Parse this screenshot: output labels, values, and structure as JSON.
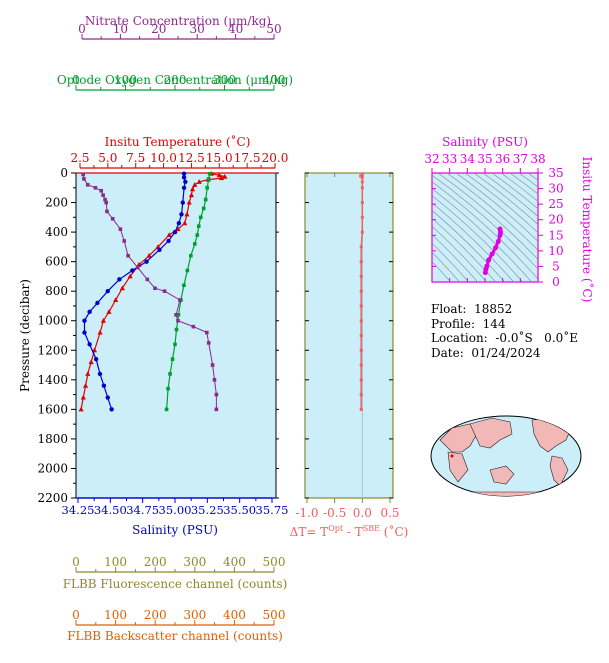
{
  "colors": {
    "nitrate": "#8B2A8B",
    "oxygen": "#00A030",
    "temperature": "#E00000",
    "salinity": "#0000CC",
    "fluorescence": "#8B8B2A",
    "backscatter": "#E06000",
    "delta_t": "#F06060",
    "ts_axis": "#E000E0",
    "panel_bg": "#CCEEF8",
    "land": "#F2B8B8"
  },
  "axes": {
    "nitrate": {
      "label": "Nitrate Concentration (μm/kg)",
      "ticks": [
        "0",
        "10",
        "20",
        "30",
        "40",
        "50"
      ],
      "range": [
        0,
        50
      ]
    },
    "oxygen": {
      "label": "Optode Oxygen Concentration (μm/kg)",
      "ticks": [
        "0",
        "100",
        "200",
        "300",
        "400"
      ],
      "range": [
        0,
        400
      ]
    },
    "temperature": {
      "label": "Insitu Temperature (˚C)",
      "ticks": [
        "2.5",
        "5.0",
        "7.5",
        "10.0",
        "12.5",
        "15.0",
        "17.5",
        "20.0"
      ],
      "range": [
        2.5,
        20.0
      ]
    },
    "salinity": {
      "label": "Salinity (PSU)",
      "ticks": [
        "34.25",
        "34.50",
        "34.75",
        "35.00",
        "35.25",
        "35.50",
        "35.75"
      ],
      "range": [
        34.25,
        35.75
      ]
    },
    "pressure": {
      "label": "Pressure (decibar)",
      "ticks": [
        "0",
        "200",
        "400",
        "600",
        "800",
        "1000",
        "1200",
        "1400",
        "1600",
        "1800",
        "2000",
        "2200"
      ],
      "range": [
        0,
        2200
      ]
    },
    "fluorescence": {
      "label": "FLBB Fluorescence channel (counts)",
      "ticks": [
        "0",
        "100",
        "200",
        "300",
        "400",
        "500"
      ],
      "range": [
        0,
        500
      ]
    },
    "backscatter": {
      "label": "FLBB Backscatter channel (counts)",
      "ticks": [
        "0",
        "100",
        "200",
        "300",
        "400",
        "500"
      ],
      "range": [
        0,
        500
      ]
    },
    "delta_t": {
      "label_main": "ΔT= T",
      "sup1": "Opt",
      "label_mid": " - T",
      "sup2": "SBE",
      "label_end": " (˚C)",
      "ticks": [
        "-1.0",
        "-0.5",
        "0.0",
        "0.5"
      ],
      "range": [
        -1.0,
        0.5
      ]
    },
    "ts_salinity": {
      "label": "Salinity (PSU)",
      "ticks": [
        "32",
        "33",
        "34",
        "35",
        "36",
        "37",
        "38"
      ],
      "range": [
        32,
        38
      ]
    },
    "ts_temperature": {
      "label": "Insitu Temperature (˚C)",
      "ticks": [
        "0",
        "5",
        "10",
        "15",
        "20",
        "25",
        "30",
        "35"
      ],
      "range": [
        0,
        35
      ]
    }
  },
  "info": {
    "float_label": "Float:",
    "float_value": "18852",
    "profile_label": "Profile:",
    "profile_value": "144",
    "location_label": "Location:",
    "location_value": "-0.0˚S   0.0˚E",
    "date_label": "Date:",
    "date_value": "01/24/2024"
  },
  "chart_data": [
    {
      "type": "line",
      "name": "profile",
      "y_axis": "pressure",
      "series": [
        {
          "name": "temperature",
          "x_axis": "temperature",
          "points": [
            [
              14.3,
              5
            ],
            [
              15.0,
              15
            ],
            [
              15.5,
              25
            ],
            [
              15.2,
              35
            ],
            [
              14.0,
              45
            ],
            [
              13.2,
              60
            ],
            [
              12.8,
              80
            ],
            [
              12.6,
              110
            ],
            [
              12.5,
              150
            ],
            [
              12.3,
              200
            ],
            [
              12.1,
              280
            ],
            [
              11.9,
              340
            ],
            [
              11.3,
              380
            ],
            [
              10.5,
              420
            ],
            [
              9.5,
              500
            ],
            [
              8.7,
              560
            ],
            [
              7.8,
              620
            ],
            [
              7.0,
              700
            ],
            [
              6.3,
              780
            ],
            [
              5.7,
              860
            ],
            [
              5.1,
              940
            ],
            [
              4.6,
              1000
            ],
            [
              4.3,
              1080
            ],
            [
              3.8,
              1200
            ],
            [
              3.5,
              1280
            ],
            [
              3.2,
              1360
            ],
            [
              3.0,
              1440
            ],
            [
              2.8,
              1520
            ],
            [
              2.6,
              1600
            ]
          ]
        },
        {
          "name": "salinity",
          "x_axis": "salinity",
          "points": [
            [
              35.07,
              5
            ],
            [
              35.07,
              30
            ],
            [
              35.08,
              60
            ],
            [
              35.07,
              100
            ],
            [
              35.06,
              200
            ],
            [
              35.05,
              280
            ],
            [
              35.03,
              340
            ],
            [
              35.0,
              400
            ],
            [
              34.95,
              460
            ],
            [
              34.88,
              520
            ],
            [
              34.78,
              600
            ],
            [
              34.67,
              660
            ],
            [
              34.57,
              720
            ],
            [
              34.48,
              800
            ],
            [
              34.4,
              880
            ],
            [
              34.34,
              940
            ],
            [
              34.3,
              1000
            ],
            [
              34.3,
              1080
            ],
            [
              34.34,
              1160
            ],
            [
              34.39,
              1260
            ],
            [
              34.42,
              1360
            ],
            [
              34.45,
              1440
            ],
            [
              34.48,
              1520
            ],
            [
              34.51,
              1600
            ]
          ]
        },
        {
          "name": "oxygen",
          "x_axis": "oxygen",
          "points": [
            [
              270,
              5
            ],
            [
              268,
              40
            ],
            [
              265,
              100
            ],
            [
              262,
              180
            ],
            [
              258,
              240
            ],
            [
              252,
              300
            ],
            [
              248,
              360
            ],
            [
              245,
              420
            ],
            [
              240,
              480
            ],
            [
              232,
              560
            ],
            [
              225,
              660
            ],
            [
              218,
              760
            ],
            [
              212,
              860
            ],
            [
              207,
              960
            ],
            [
              203,
              1060
            ],
            [
              200,
              1160
            ],
            [
              195,
              1260
            ],
            [
              190,
              1360
            ],
            [
              186,
              1460
            ],
            [
              183,
              1600
            ]
          ]
        },
        {
          "name": "nitrate",
          "x_axis": "nitrate",
          "points": [
            [
              0.3,
              10
            ],
            [
              0.5,
              40
            ],
            [
              1.5,
              80
            ],
            [
              3.5,
              100
            ],
            [
              5.0,
              120
            ],
            [
              5.5,
              150
            ],
            [
              6.0,
              180
            ],
            [
              6.3,
              200
            ],
            [
              6.5,
              260
            ],
            [
              8.0,
              310
            ],
            [
              10.0,
              380
            ],
            [
              11.0,
              460
            ],
            [
              12.0,
              560
            ],
            [
              14.5,
              640
            ],
            [
              17.0,
              720
            ],
            [
              19.0,
              780
            ],
            [
              21.5,
              800
            ],
            [
              25.5,
              860
            ],
            [
              24.5,
              960
            ],
            [
              25.0,
              1000
            ],
            [
              29.0,
              1040
            ],
            [
              32.5,
              1080
            ],
            [
              33.0,
              1150
            ],
            [
              34.0,
              1300
            ],
            [
              34.5,
              1400
            ],
            [
              35.0,
              1500
            ],
            [
              35.0,
              1600
            ]
          ]
        },
        {
          "name": "delta_t",
          "x_axis": "delta_t",
          "points": [
            [
              0.0,
              10
            ],
            [
              -0.03,
              20
            ],
            [
              0.0,
              30
            ],
            [
              0.0,
              60
            ],
            [
              0.0,
              100
            ],
            [
              0.0,
              200
            ],
            [
              0.0,
              300
            ],
            [
              0.0,
              400
            ],
            [
              -0.02,
              500
            ],
            [
              -0.02,
              600
            ],
            [
              -0.02,
              700
            ],
            [
              -0.02,
              800
            ],
            [
              -0.02,
              900
            ],
            [
              -0.02,
              1000
            ],
            [
              -0.02,
              1100
            ],
            [
              -0.02,
              1200
            ],
            [
              -0.02,
              1300
            ],
            [
              -0.02,
              1400
            ],
            [
              -0.02,
              1500
            ],
            [
              -0.02,
              1600
            ]
          ]
        }
      ]
    },
    {
      "type": "scatter",
      "name": "temperature-salinity",
      "x_axis": "ts_salinity",
      "y_axis": "ts_temperature",
      "points": [
        [
          35.02,
          3
        ],
        [
          35.05,
          4
        ],
        [
          35.1,
          5
        ],
        [
          35.2,
          7
        ],
        [
          35.4,
          9
        ],
        [
          35.6,
          11
        ],
        [
          35.75,
          13
        ],
        [
          35.85,
          15
        ],
        [
          35.88,
          16
        ],
        [
          35.85,
          17
        ]
      ]
    }
  ]
}
